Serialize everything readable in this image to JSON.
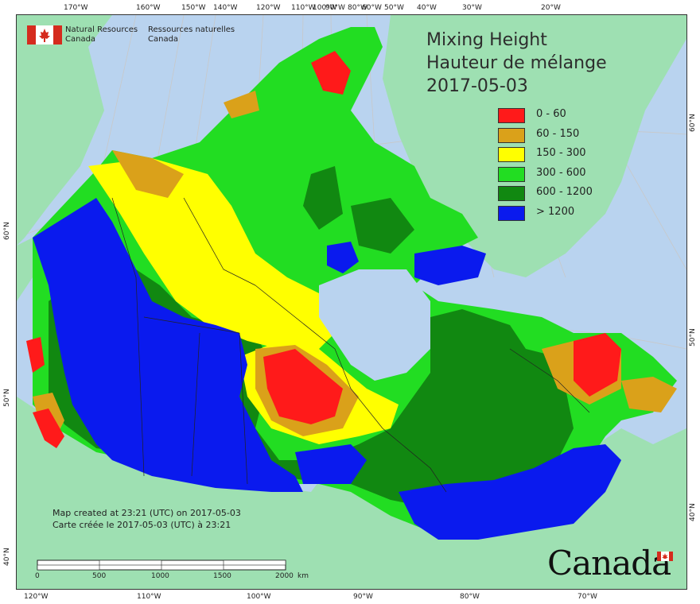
{
  "title": {
    "line1": "Mixing Height",
    "line2": "Hauteur de mélange",
    "date": "2017-05-03"
  },
  "legend": [
    {
      "label": "0 - 60",
      "color": "#ff1a1a"
    },
    {
      "label": "60 - 150",
      "color": "#daa11a"
    },
    {
      "label": "150 - 300",
      "color": "#ffff00"
    },
    {
      "label": "300 - 600",
      "color": "#22dd22"
    },
    {
      "label": "600 - 1200",
      "color": "#118811"
    },
    {
      "label": "> 1200",
      "color": "#0a1aee"
    }
  ],
  "agency": {
    "en_line1": "Natural Resources",
    "en_line2": "Canada",
    "fr_line1": "Ressources naturelles",
    "fr_line2": "Canada"
  },
  "credit": {
    "en": "Map created at 23:21 (UTC) on 2017-05-03",
    "fr": "Carte créée le 2017-05-03 (UTC) à 23:21"
  },
  "scale": {
    "labels": [
      "0",
      "500",
      "1000",
      "1500",
      "2000"
    ],
    "unit": "km"
  },
  "wordmark": "Canada",
  "top_ticks": [
    "170°W",
    "160°W",
    "150°W",
    "140°W",
    "120°W",
    "110°W",
    "100°W",
    "90°W",
    "80°W",
    "60°W",
    "50°W",
    "40°W",
    "30°W",
    "20°W"
  ],
  "bottom_ticks": [
    "120°W",
    "110°W",
    "100°W",
    "90°W",
    "80°W",
    "70°W"
  ],
  "left_ticks": [
    "60°N",
    "50°N",
    "40°N"
  ],
  "right_ticks": [
    "60°N",
    "50°N",
    "40°N"
  ],
  "colors": {
    "ocean": "#b9d3ef",
    "land_outside": "#9ee0b2",
    "graticule": "#c9c9c9"
  }
}
